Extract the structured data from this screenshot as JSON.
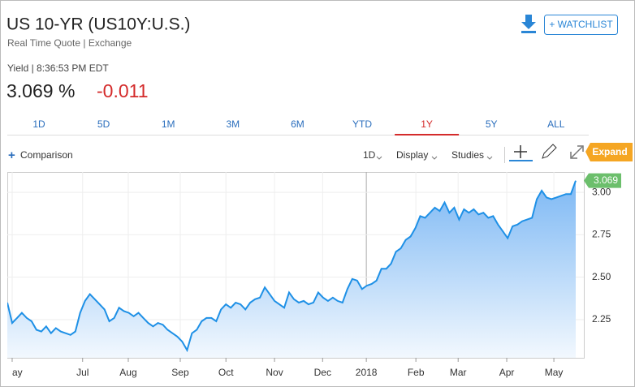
{
  "header": {
    "title": "US 10-YR (US10Y:U.S.)",
    "subtitle": "Real Time Quote | Exchange",
    "meta": "Yield | 8:36:53 PM EDT",
    "yield": "3.069 %",
    "change": "-0.011",
    "watchlist": "+ WATCHLIST"
  },
  "tabs": [
    "1D",
    "5D",
    "1M",
    "3M",
    "6M",
    "YTD",
    "1Y",
    "5Y",
    "ALL"
  ],
  "toolbar": {
    "comparison": "Comparison",
    "interval": "1D",
    "display": "Display",
    "studies": "Studies",
    "expand": "Expand"
  },
  "chart_data": {
    "type": "area",
    "color": "#1e90e6",
    "values": [
      2.35,
      2.23,
      2.26,
      2.29,
      2.26,
      2.24,
      2.19,
      2.18,
      2.21,
      2.17,
      2.2,
      2.18,
      2.17,
      2.16,
      2.18,
      2.29,
      2.36,
      2.4,
      2.37,
      2.34,
      2.31,
      2.24,
      2.26,
      2.32,
      2.3,
      2.29,
      2.27,
      2.29,
      2.26,
      2.23,
      2.21,
      2.23,
      2.22,
      2.19,
      2.17,
      2.15,
      2.12,
      2.07,
      2.17,
      2.19,
      2.24,
      2.26,
      2.26,
      2.24,
      2.31,
      2.34,
      2.32,
      2.35,
      2.34,
      2.31,
      2.35,
      2.37,
      2.38,
      2.44,
      2.4,
      2.36,
      2.34,
      2.32,
      2.41,
      2.37,
      2.35,
      2.36,
      2.34,
      2.35,
      2.41,
      2.38,
      2.36,
      2.38,
      2.36,
      2.35,
      2.43,
      2.49,
      2.48,
      2.43,
      2.45,
      2.46,
      2.48,
      2.55,
      2.55,
      2.58,
      2.65,
      2.67,
      2.72,
      2.74,
      2.79,
      2.86,
      2.85,
      2.88,
      2.91,
      2.89,
      2.94,
      2.88,
      2.91,
      2.84,
      2.9,
      2.88,
      2.9,
      2.87,
      2.88,
      2.85,
      2.86,
      2.81,
      2.77,
      2.73,
      2.8,
      2.81,
      2.83,
      2.84,
      2.85,
      2.96,
      3.01,
      2.97,
      2.96,
      2.97,
      2.98,
      2.99,
      2.99,
      3.069
    ],
    "xlim": [
      0,
      117
    ],
    "xticks": [
      {
        "value": 1,
        "label": "ay"
      },
      {
        "value": 15.5,
        "label": "Jul"
      },
      {
        "value": 24.9,
        "label": "Aug"
      },
      {
        "value": 35.6,
        "label": "Sep"
      },
      {
        "value": 45,
        "label": "Oct"
      },
      {
        "value": 55,
        "label": "Nov"
      },
      {
        "value": 64.9,
        "label": "Dec"
      },
      {
        "value": 73.9,
        "label": "2018"
      },
      {
        "value": 84.1,
        "label": "Feb"
      },
      {
        "value": 92.8,
        "label": "Mar"
      },
      {
        "value": 102.8,
        "label": "Apr"
      },
      {
        "value": 112.5,
        "label": "May"
      }
    ],
    "ylim": [
      2.025,
      3.12
    ],
    "yticks": [
      2.25,
      {
        "value": 2.5,
        "label": "2.50"
      },
      2.75,
      {
        "value": 3,
        "label": "3.00"
      }
    ],
    "grid": true
  }
}
